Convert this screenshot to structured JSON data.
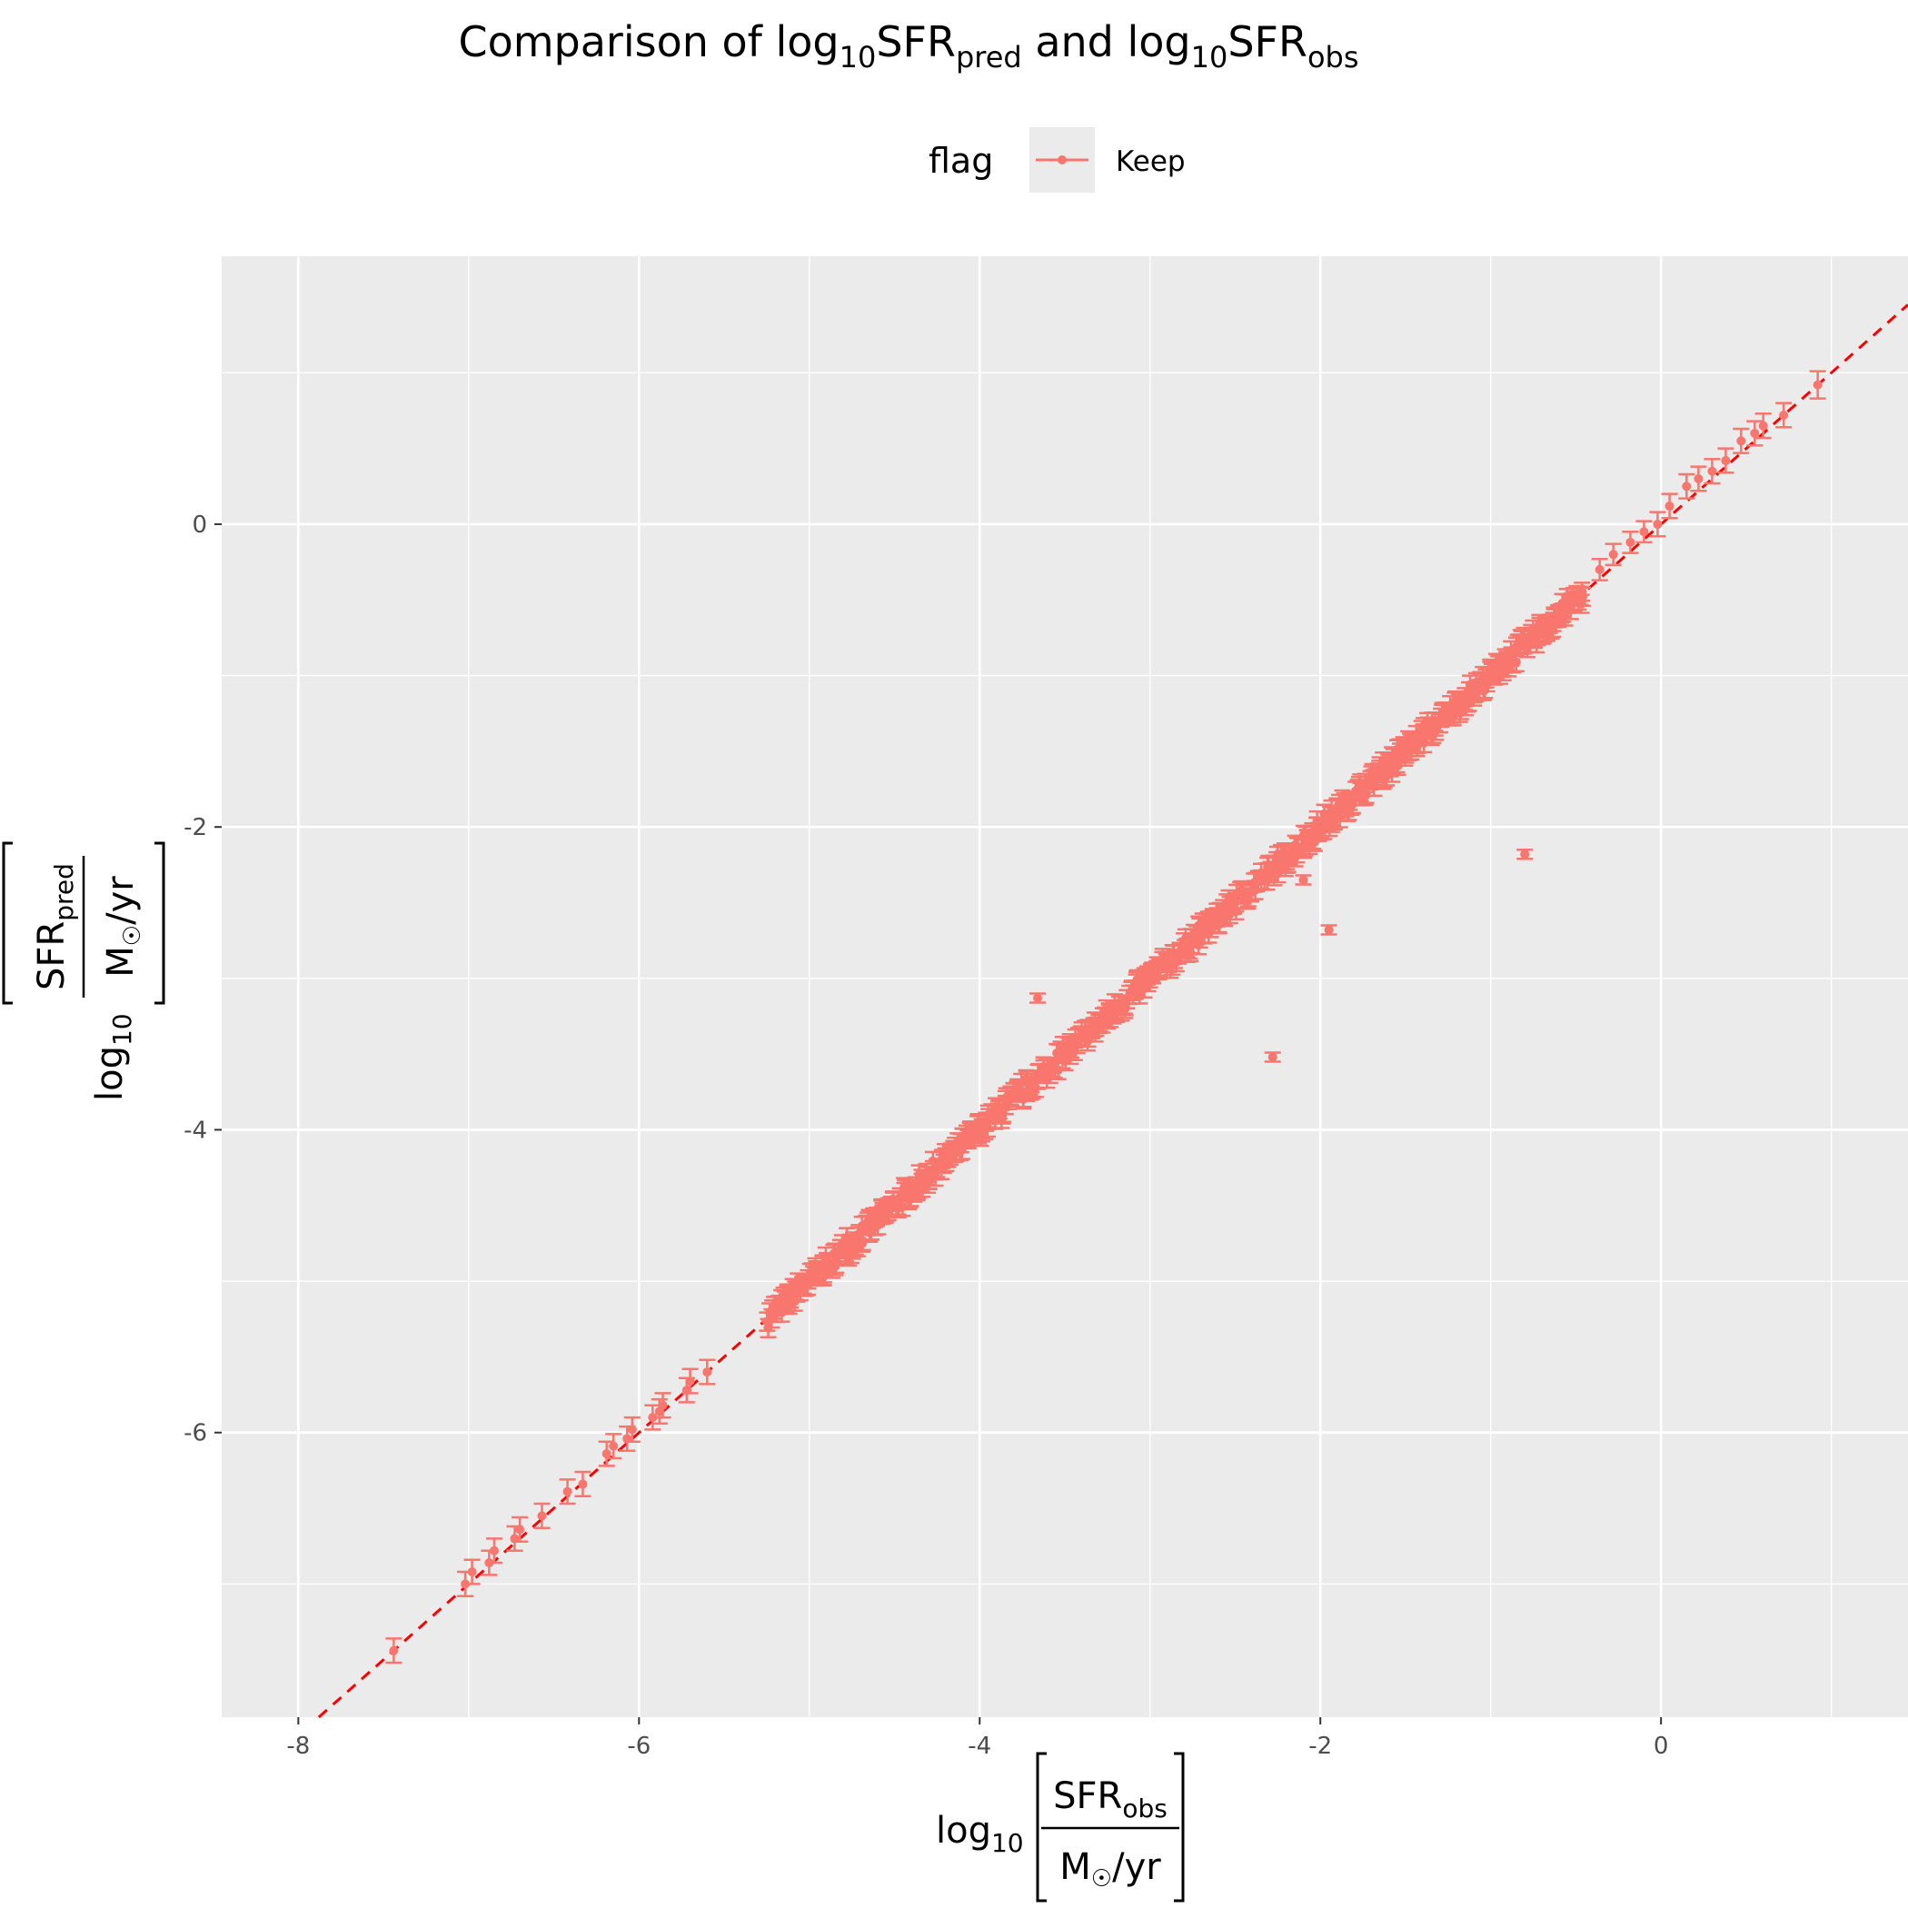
{
  "chart_data": {
    "type": "scatter",
    "title": {
      "prefix": "Comparison of log",
      "sub1": "10",
      "mid1": "SFR",
      "sub2": "pred",
      "mid2": " and log",
      "sub3": "10",
      "mid3": "SFR",
      "sub4": "obs"
    },
    "legend": {
      "title": "flag",
      "placement": "top",
      "entries": [
        {
          "label": "Keep",
          "color": "#F8766D"
        }
      ]
    },
    "xlabel": {
      "log": "log",
      "log_sub": "10",
      "num": "SFR",
      "num_sub": "obs",
      "den": "M",
      "den_sym": "☉",
      "den_rest": "/yr"
    },
    "ylabel": {
      "log": "log",
      "log_sub": "10",
      "num": "SFR",
      "num_sub": "pred",
      "den": "M",
      "den_sym": "☉",
      "den_rest": "/yr"
    },
    "xlim": [
      -8.45,
      1.45
    ],
    "ylim": [
      -7.88,
      1.77
    ],
    "xticks": [
      -8,
      -6,
      -4,
      -2,
      0
    ],
    "xtick_labels": [
      "-8",
      "-6",
      "-4",
      "-2",
      "0"
    ],
    "yticks": [
      -6,
      -4,
      -2,
      0
    ],
    "ytick_labels": [
      "-6",
      "-4",
      "-2",
      "0"
    ],
    "xminor": [
      -7,
      -5,
      -3,
      -1,
      1
    ],
    "yminor": [
      -7,
      -5,
      -3,
      -1,
      1
    ],
    "grid": true,
    "reference_line": {
      "slope": 1,
      "intercept": 0,
      "style": "dashed",
      "color": "#FF0000"
    },
    "series": [
      {
        "name": "Keep",
        "color": "#F8766D",
        "dense_band": {
          "x_from": -5.25,
          "x_to": -0.45,
          "offset": 0.0,
          "spread": 0.06,
          "err": 0.06
        },
        "points": [
          {
            "x": -7.44,
            "y": -7.44,
            "err": 0.08
          },
          {
            "x": -7.02,
            "y": -7.0,
            "err": 0.08
          },
          {
            "x": -6.98,
            "y": -6.92,
            "err": 0.08
          },
          {
            "x": -6.88,
            "y": -6.86,
            "err": 0.08
          },
          {
            "x": -6.85,
            "y": -6.78,
            "err": 0.08
          },
          {
            "x": -6.73,
            "y": -6.7,
            "err": 0.08
          },
          {
            "x": -6.7,
            "y": -6.64,
            "err": 0.08
          },
          {
            "x": -6.57,
            "y": -6.55,
            "err": 0.08
          },
          {
            "x": -6.42,
            "y": -6.39,
            "err": 0.08
          },
          {
            "x": -6.33,
            "y": -6.34,
            "err": 0.08
          },
          {
            "x": -6.19,
            "y": -6.14,
            "err": 0.08
          },
          {
            "x": -6.15,
            "y": -6.09,
            "err": 0.08
          },
          {
            "x": -6.07,
            "y": -6.04,
            "err": 0.08
          },
          {
            "x": -6.04,
            "y": -5.98,
            "err": 0.08
          },
          {
            "x": -5.92,
            "y": -5.9,
            "err": 0.08
          },
          {
            "x": -5.88,
            "y": -5.86,
            "err": 0.08
          },
          {
            "x": -5.86,
            "y": -5.82,
            "err": 0.08
          },
          {
            "x": -5.72,
            "y": -5.72,
            "err": 0.08
          },
          {
            "x": -5.7,
            "y": -5.66,
            "err": 0.08
          },
          {
            "x": -5.6,
            "y": -5.6,
            "err": 0.08
          },
          {
            "x": -4.92,
            "y": -4.9,
            "err": 0.07
          },
          {
            "x": -4.78,
            "y": -4.72,
            "err": 0.07
          },
          {
            "x": -4.65,
            "y": -4.6,
            "err": 0.07
          },
          {
            "x": -3.66,
            "y": -3.13,
            "err": 0.03
          },
          {
            "x": -2.28,
            "y": -3.52,
            "err": 0.03
          },
          {
            "x": -2.1,
            "y": -2.35,
            "err": 0.03
          },
          {
            "x": -1.95,
            "y": -2.68,
            "err": 0.03
          },
          {
            "x": -0.8,
            "y": -2.18,
            "err": 0.03
          },
          {
            "x": -0.36,
            "y": -0.3,
            "err": 0.07
          },
          {
            "x": -0.28,
            "y": -0.2,
            "err": 0.07
          },
          {
            "x": -0.18,
            "y": -0.12,
            "err": 0.07
          },
          {
            "x": -0.1,
            "y": -0.05,
            "err": 0.07
          },
          {
            "x": -0.02,
            "y": 0.0,
            "err": 0.08
          },
          {
            "x": 0.05,
            "y": 0.12,
            "err": 0.08
          },
          {
            "x": 0.15,
            "y": 0.25,
            "err": 0.08
          },
          {
            "x": 0.22,
            "y": 0.3,
            "err": 0.08
          },
          {
            "x": 0.3,
            "y": 0.35,
            "err": 0.08
          },
          {
            "x": 0.38,
            "y": 0.42,
            "err": 0.08
          },
          {
            "x": 0.47,
            "y": 0.55,
            "err": 0.08
          },
          {
            "x": 0.55,
            "y": 0.6,
            "err": 0.08
          },
          {
            "x": 0.6,
            "y": 0.65,
            "err": 0.08
          },
          {
            "x": 0.72,
            "y": 0.72,
            "err": 0.08
          },
          {
            "x": 0.92,
            "y": 0.92,
            "err": 0.09
          }
        ]
      }
    ]
  }
}
